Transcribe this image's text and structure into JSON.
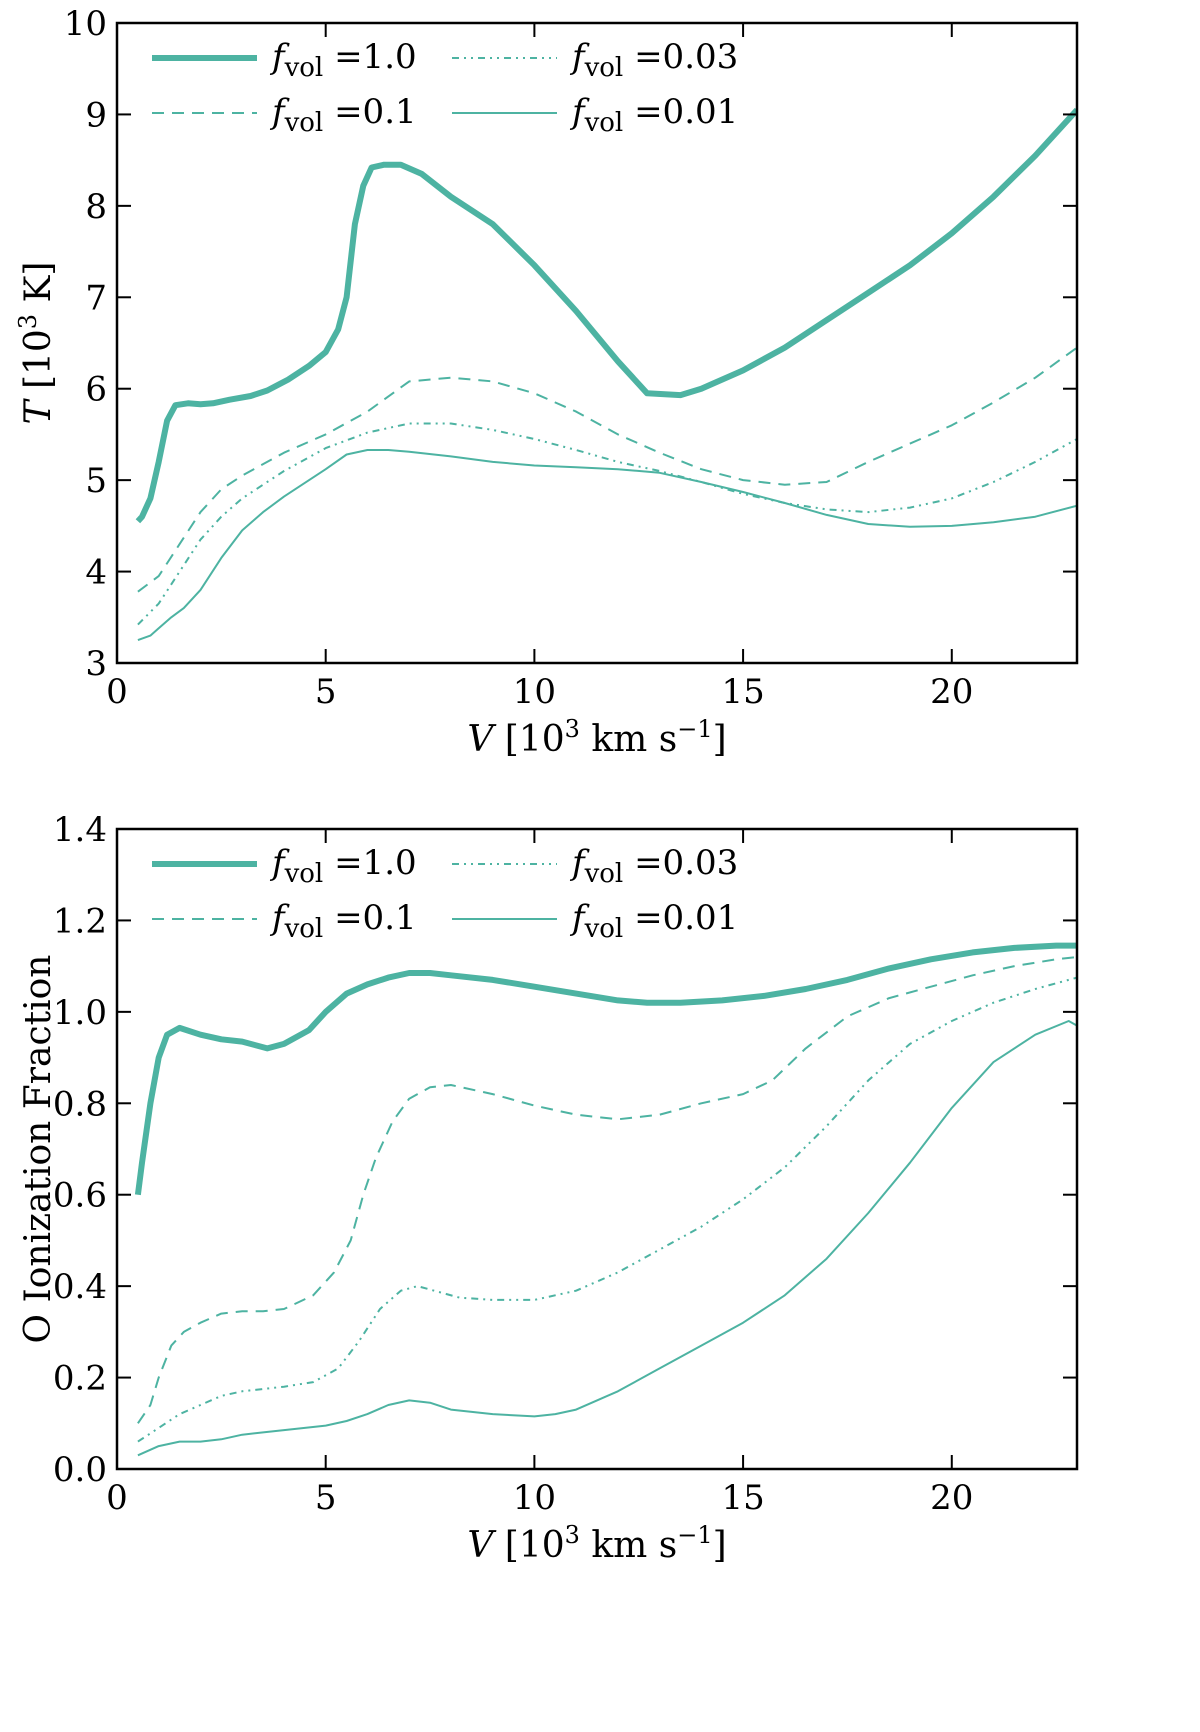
{
  "colors": {
    "series": "#4db3a2",
    "axis": "#000000"
  },
  "chart_data": [
    {
      "type": "line",
      "xlabel": "V [10^3 km s^-1]",
      "ylabel": "T [10^3 K]",
      "xlabel_parts": {
        "var": "V",
        "open": " [10",
        "sup": "3",
        "unit": " km s",
        "unit_sup": "−1",
        "close": "]"
      },
      "ylabel_parts": {
        "var": "T",
        "open": " [10",
        "sup": "3",
        "unit": " K]"
      },
      "xlim": [
        0,
        23
      ],
      "ylim": [
        3,
        10
      ],
      "xticks": [
        0,
        5,
        10,
        15,
        20
      ],
      "xtick_labels": [
        "0",
        "5",
        "10",
        "15",
        "20"
      ],
      "yticks": [
        3,
        4,
        5,
        6,
        7,
        8,
        9,
        10
      ],
      "ytick_labels": [
        "3",
        "4",
        "5",
        "6",
        "7",
        "8",
        "9",
        "10"
      ],
      "grid": false,
      "legend_position": "top-left",
      "series": [
        {
          "name": "f_vol =1.0",
          "symbol": "f",
          "subscript": "vol",
          "value_text": "=1.0",
          "style": "thick",
          "x": [
            0.5,
            0.6,
            0.8,
            1.0,
            1.2,
            1.4,
            1.7,
            2.0,
            2.3,
            2.7,
            3.2,
            3.6,
            4.1,
            4.6,
            5.0,
            5.3,
            5.5,
            5.7,
            5.9,
            6.1,
            6.4,
            6.8,
            7.3,
            8.0,
            9.0,
            10.0,
            11.0,
            12.0,
            12.7,
            13.5,
            14.0,
            15.0,
            16.0,
            17.0,
            18.0,
            19.0,
            20.0,
            21.0,
            22.0,
            23.0
          ],
          "y": [
            4.55,
            4.6,
            4.8,
            5.2,
            5.65,
            5.82,
            5.84,
            5.83,
            5.84,
            5.88,
            5.92,
            5.98,
            6.1,
            6.25,
            6.4,
            6.65,
            7.0,
            7.8,
            8.22,
            8.42,
            8.45,
            8.45,
            8.35,
            8.1,
            7.8,
            7.35,
            6.85,
            6.3,
            5.95,
            5.93,
            6.0,
            6.2,
            6.45,
            6.75,
            7.05,
            7.35,
            7.7,
            8.1,
            8.55,
            9.05
          ]
        },
        {
          "name": "f_vol =0.1",
          "symbol": "f",
          "subscript": "vol",
          "value_text": "=0.1",
          "style": "dashed",
          "x": [
            0.5,
            1.0,
            1.5,
            2.0,
            2.5,
            3.0,
            4.0,
            5.0,
            6.0,
            7.0,
            8.0,
            9.0,
            10.0,
            11.0,
            12.0,
            13.0,
            14.0,
            15.0,
            16.0,
            17.0,
            18.0,
            19.0,
            20.0,
            21.0,
            22.0,
            23.0
          ],
          "y": [
            3.78,
            3.95,
            4.3,
            4.65,
            4.9,
            5.05,
            5.3,
            5.5,
            5.75,
            6.08,
            6.12,
            6.08,
            5.95,
            5.75,
            5.5,
            5.3,
            5.12,
            5.0,
            4.95,
            4.98,
            5.2,
            5.4,
            5.6,
            5.85,
            6.12,
            6.45
          ]
        },
        {
          "name": "f_vol =0.03",
          "symbol": "f",
          "subscript": "vol",
          "value_text": "=0.03",
          "style": "dashdot",
          "x": [
            0.5,
            1.0,
            1.5,
            2.0,
            2.5,
            3.0,
            4.0,
            5.0,
            6.0,
            7.0,
            8.0,
            9.0,
            10.0,
            11.0,
            12.0,
            13.0,
            14.0,
            15.0,
            16.0,
            17.0,
            18.0,
            19.0,
            20.0,
            21.0,
            22.0,
            23.0
          ],
          "y": [
            3.42,
            3.65,
            4.0,
            4.35,
            4.6,
            4.8,
            5.1,
            5.35,
            5.52,
            5.62,
            5.62,
            5.55,
            5.45,
            5.33,
            5.2,
            5.1,
            4.98,
            4.85,
            4.75,
            4.68,
            4.65,
            4.7,
            4.8,
            4.98,
            5.2,
            5.45
          ]
        },
        {
          "name": "f_vol =0.01",
          "symbol": "f",
          "subscript": "vol",
          "value_text": "=0.01",
          "style": "thin",
          "x": [
            0.5,
            0.8,
            1.0,
            1.3,
            1.6,
            2.0,
            2.5,
            3.0,
            3.5,
            4.0,
            5.0,
            5.5,
            6.0,
            6.5,
            7.0,
            8.0,
            9.0,
            10.0,
            11.0,
            12.0,
            13.0,
            14.0,
            15.0,
            16.0,
            17.0,
            18.0,
            19.0,
            20.0,
            21.0,
            22.0,
            23.0
          ],
          "y": [
            3.25,
            3.3,
            3.38,
            3.5,
            3.6,
            3.8,
            4.15,
            4.45,
            4.65,
            4.82,
            5.12,
            5.28,
            5.33,
            5.33,
            5.31,
            5.26,
            5.2,
            5.16,
            5.14,
            5.12,
            5.08,
            4.98,
            4.87,
            4.75,
            4.62,
            4.52,
            4.49,
            4.5,
            4.54,
            4.6,
            4.72
          ]
        }
      ]
    },
    {
      "type": "line",
      "xlabel": "V [10^3 km s^-1]",
      "ylabel": "O Ionization Fraction",
      "xlabel_parts": {
        "var": "V",
        "open": " [10",
        "sup": "3",
        "unit": " km s",
        "unit_sup": "−1",
        "close": "]"
      },
      "xlim": [
        0,
        23
      ],
      "ylim": [
        0.0,
        1.4
      ],
      "xticks": [
        0,
        5,
        10,
        15,
        20
      ],
      "xtick_labels": [
        "0",
        "5",
        "10",
        "15",
        "20"
      ],
      "yticks": [
        0.0,
        0.2,
        0.4,
        0.6,
        0.8,
        1.0,
        1.2,
        1.4
      ],
      "ytick_labels": [
        "0.0",
        "0.2",
        "0.4",
        "0.6",
        "0.8",
        "1.0",
        "1.2",
        "1.4"
      ],
      "grid": false,
      "legend_position": "top-left",
      "series": [
        {
          "name": "f_vol =1.0",
          "symbol": "f",
          "subscript": "vol",
          "value_text": "=1.0",
          "style": "thick",
          "x": [
            0.5,
            0.6,
            0.8,
            1.0,
            1.2,
            1.5,
            2.0,
            2.5,
            3.0,
            3.6,
            4.0,
            4.6,
            5.0,
            5.5,
            6.0,
            6.5,
            7.0,
            7.5,
            8.0,
            9.0,
            10.0,
            11.0,
            12.0,
            12.7,
            13.5,
            14.5,
            15.5,
            16.5,
            17.5,
            18.5,
            19.5,
            20.5,
            21.5,
            22.5,
            23.0
          ],
          "y": [
            0.6,
            0.67,
            0.8,
            0.9,
            0.95,
            0.965,
            0.95,
            0.94,
            0.935,
            0.92,
            0.93,
            0.96,
            1.0,
            1.04,
            1.06,
            1.075,
            1.085,
            1.085,
            1.08,
            1.07,
            1.055,
            1.04,
            1.025,
            1.02,
            1.02,
            1.025,
            1.035,
            1.05,
            1.07,
            1.095,
            1.115,
            1.13,
            1.14,
            1.145,
            1.145
          ]
        },
        {
          "name": "f_vol =0.1",
          "symbol": "f",
          "subscript": "vol",
          "value_text": "=0.1",
          "style": "dashed",
          "x": [
            0.5,
            0.8,
            1.0,
            1.3,
            1.6,
            2.0,
            2.5,
            3.0,
            3.5,
            4.0,
            4.7,
            5.2,
            5.6,
            5.9,
            6.2,
            6.6,
            7.0,
            7.5,
            8.0,
            9.0,
            10.0,
            11.0,
            12.0,
            13.0,
            14.0,
            15.0,
            15.7,
            16.5,
            17.5,
            18.5,
            19.5,
            20.5,
            21.5,
            22.5,
            23.0
          ],
          "y": [
            0.1,
            0.14,
            0.2,
            0.27,
            0.3,
            0.32,
            0.34,
            0.345,
            0.345,
            0.35,
            0.38,
            0.43,
            0.5,
            0.6,
            0.68,
            0.76,
            0.81,
            0.835,
            0.84,
            0.82,
            0.795,
            0.775,
            0.765,
            0.775,
            0.8,
            0.82,
            0.85,
            0.92,
            0.99,
            1.03,
            1.055,
            1.08,
            1.1,
            1.115,
            1.12
          ]
        },
        {
          "name": "f_vol =0.03",
          "symbol": "f",
          "subscript": "vol",
          "value_text": "=0.03",
          "style": "dashdot",
          "x": [
            0.5,
            1.0,
            1.5,
            2.0,
            2.5,
            3.0,
            3.5,
            4.0,
            4.7,
            5.3,
            5.8,
            6.3,
            6.8,
            7.2,
            7.6,
            8.2,
            9.0,
            10.0,
            11.0,
            12.0,
            13.0,
            14.0,
            15.0,
            16.0,
            17.0,
            18.0,
            19.0,
            20.0,
            21.0,
            22.0,
            23.0
          ],
          "y": [
            0.06,
            0.09,
            0.12,
            0.14,
            0.16,
            0.17,
            0.175,
            0.18,
            0.19,
            0.22,
            0.28,
            0.35,
            0.39,
            0.4,
            0.39,
            0.375,
            0.37,
            0.37,
            0.39,
            0.43,
            0.48,
            0.53,
            0.59,
            0.66,
            0.75,
            0.85,
            0.93,
            0.98,
            1.02,
            1.05,
            1.075
          ]
        },
        {
          "name": "f_vol =0.01",
          "symbol": "f",
          "subscript": "vol",
          "value_text": "=0.01",
          "style": "thin",
          "x": [
            0.5,
            1.0,
            1.5,
            2.0,
            2.5,
            3.0,
            3.5,
            4.0,
            5.0,
            5.5,
            6.0,
            6.5,
            7.0,
            7.5,
            8.0,
            9.0,
            10.0,
            10.5,
            11.0,
            11.5,
            12.0,
            13.0,
            14.0,
            15.0,
            16.0,
            17.0,
            18.0,
            19.0,
            20.0,
            21.0,
            22.0,
            22.8,
            23.0
          ],
          "y": [
            0.03,
            0.05,
            0.06,
            0.06,
            0.065,
            0.075,
            0.08,
            0.085,
            0.095,
            0.105,
            0.12,
            0.14,
            0.15,
            0.145,
            0.13,
            0.12,
            0.115,
            0.12,
            0.13,
            0.15,
            0.17,
            0.22,
            0.27,
            0.32,
            0.38,
            0.46,
            0.56,
            0.67,
            0.79,
            0.89,
            0.95,
            0.98,
            0.97
          ]
        }
      ]
    }
  ]
}
